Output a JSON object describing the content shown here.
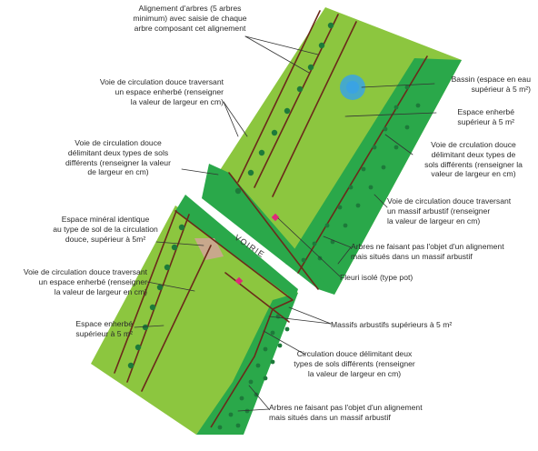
{
  "colors": {
    "light_green": "#8cc63f",
    "dark_green": "#2aa84a",
    "tree": "#1d7a3a",
    "brown_line": "#6b2a1a",
    "basin": "#3aa3e3",
    "mineral": "#c8a88c",
    "flower_pot": "#e0287a",
    "leader": "#333333"
  },
  "road_label": "VOIRIE",
  "labels": {
    "alignement_arbres": [
      "Alignement d'arbres (5 arbres",
      "minimum) avec saisie de chaque",
      "arbre composant cet alignement"
    ],
    "voie_enherbe_top": [
      "Voie de circulation douce traversant",
      "un espace enherbé (renseigner",
      "la valeur de largeur en cm)"
    ],
    "voie_sols_left": [
      "Voie de circulation douce",
      "délimitant deux types de sols",
      "différents (renseigner la valeur",
      "de largeur en cm)"
    ],
    "espace_mineral": [
      "Espace minéral identique",
      "au type de sol de la circulation",
      "douce, supérieur à 5m²"
    ],
    "voie_enherbe_bottom": [
      "Voie de circulation douce traversant",
      "un espace enherbé (renseigner",
      "la valeur de largeur en cm)"
    ],
    "espace_enherbe_left": [
      "Espace enherbé",
      "supérieur à 5 m²"
    ],
    "bassin": [
      "Bassin (espace en eau",
      "supérieur à 5 m²)"
    ],
    "espace_enherbe_right": [
      "Espace enherbé",
      "supérieur à 5 m²"
    ],
    "voie_sols_right": [
      "Voie de crculation douce",
      "délimitant deux types de",
      "sols différents (renseigner la",
      "valeur de largeur en cm)"
    ],
    "voie_massif": [
      "Voie de circulation douce traversant",
      "un massif arbustif (renseigner",
      "la valeur de largeur en cm)"
    ],
    "arbres_massif_top": [
      "Arbres ne faisant pas l'objet d'un alignement",
      "mais situés dans un massif arbustif"
    ],
    "fleuri_isole": [
      "Fleuri isolé (type pot)"
    ],
    "massifs_arbustifs": [
      "Massifs arbustifs supérieurs à 5 m²"
    ],
    "circulation_douce": [
      "Circulation douce délimitant deux",
      "types de sols différents (renseigner",
      "la valeur de largeur en cm)"
    ],
    "arbres_massif_bottom": [
      "Arbres ne faisant pas l'objet d'un alignement",
      "mais situés dans un massif arbustif"
    ]
  }
}
